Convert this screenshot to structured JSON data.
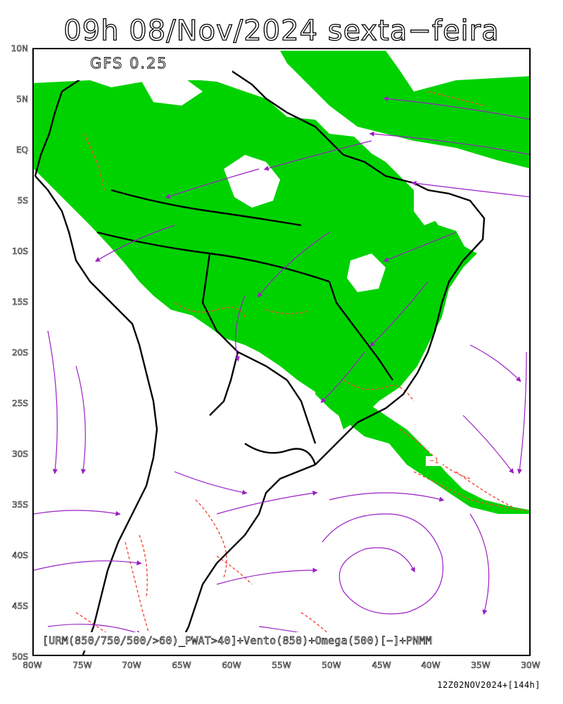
{
  "header": {
    "title": "09h 08/Nov/2024 sexta−feira"
  },
  "map": {
    "model_label": "GFS 0.25",
    "legend_caption": "[URM(850/750/500/>60)_PWAT>40]+Vento(850)+Omega(500)[−]+PNMM",
    "latitude_labels": [
      "10N",
      "5N",
      "EQ",
      "5S",
      "10S",
      "15S",
      "20S",
      "25S",
      "30S",
      "35S",
      "40S",
      "45S",
      "50S"
    ],
    "longitude_labels": [
      "80W",
      "75W",
      "70W",
      "65W",
      "60W",
      "55W",
      "50W",
      "45W",
      "40W",
      "35W",
      "30W"
    ],
    "isobar_label": "−1",
    "colors": {
      "humidity_fill": "#00d200",
      "streamlines": "#9a1fc4",
      "omega_contours": "#f24a3a",
      "coastline": "#000000",
      "background": "#ffffff"
    }
  },
  "footer": {
    "run_stamp": "12Z02NOV2024+[144h]"
  }
}
